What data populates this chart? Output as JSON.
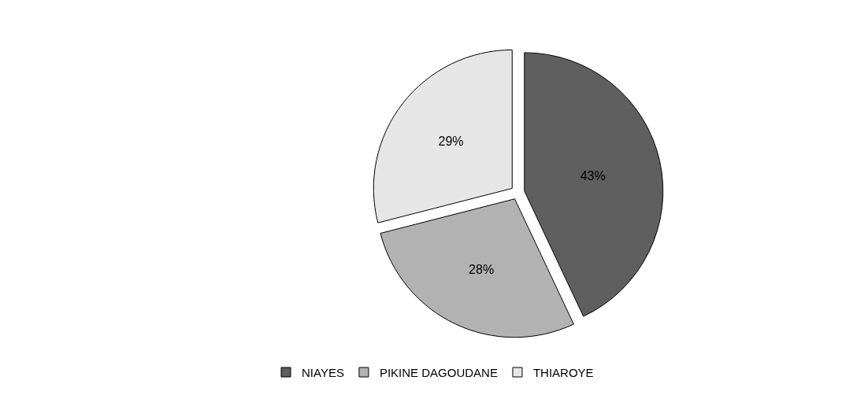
{
  "chart_data": {
    "type": "pie",
    "categories": [
      "NIAYES",
      "PIKINE DAGOUDANE",
      "THIAROYE"
    ],
    "values": [
      43,
      28,
      29
    ],
    "colors": [
      "#5f5f5f",
      "#b2b2b2",
      "#e6e6e6"
    ],
    "value_labels": [
      "43%",
      "28%",
      "29%"
    ],
    "legend": "bottom"
  }
}
